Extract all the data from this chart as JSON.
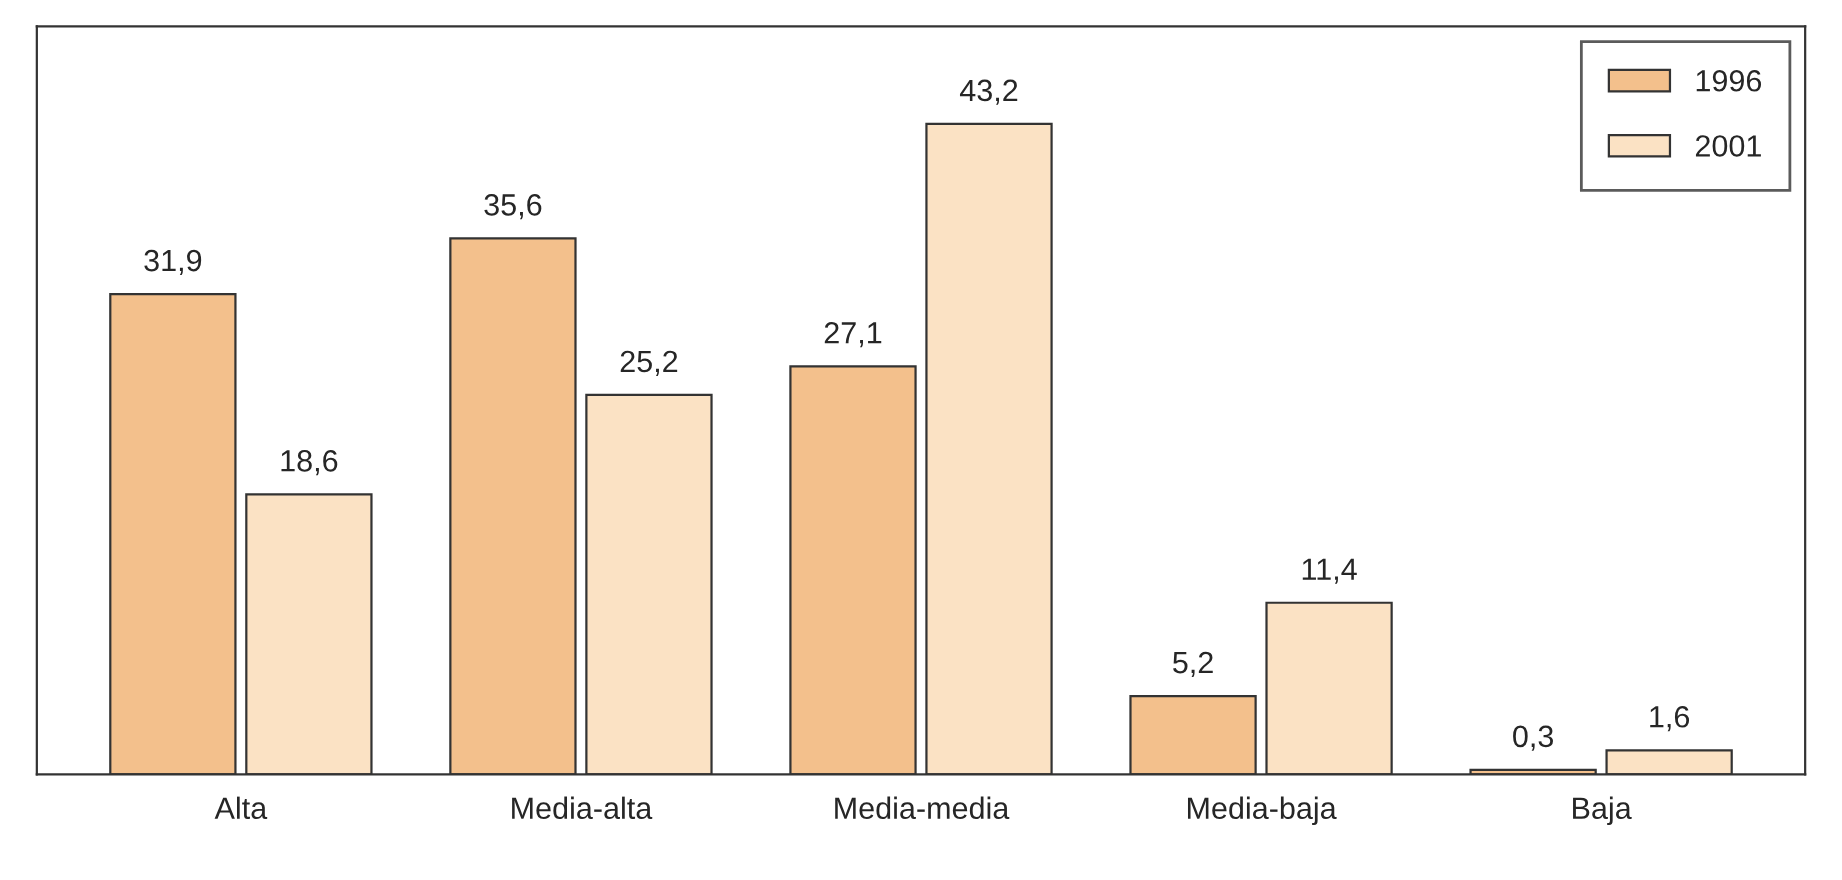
{
  "chart_data": {
    "type": "bar",
    "categories": [
      "Alta",
      "Media-alta",
      "Media-media",
      "Media-baja",
      "Baja"
    ],
    "series": [
      {
        "name": "1996",
        "color": "#f3c08c",
        "values": [
          31.9,
          35.6,
          27.1,
          5.2,
          0.3
        ],
        "value_labels": [
          "31,9",
          "35,6",
          "27,1",
          "5,2",
          "0,3"
        ]
      },
      {
        "name": "2001",
        "color": "#fbe2c4",
        "values": [
          18.6,
          25.2,
          43.2,
          11.4,
          1.6
        ],
        "value_labels": [
          "18,6",
          "25,2",
          "43,2",
          "11,4",
          "1,6"
        ]
      }
    ],
    "legend": "top right",
    "grid": false
  }
}
